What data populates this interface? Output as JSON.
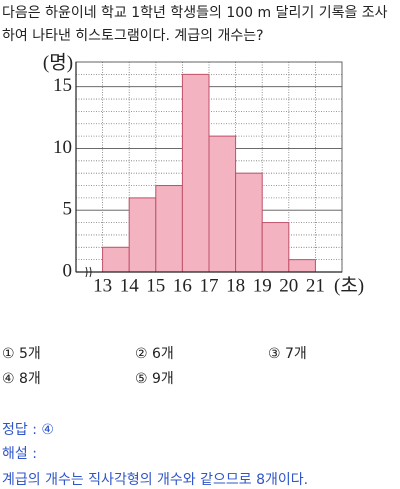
{
  "question": {
    "lines": [
      "다음은 하윤이네 학교 1학년 학생들의 100 m 달리기 기록을 조사",
      "하여 나타낸 히스토그램이다. 계급의 개수는?"
    ]
  },
  "chart_data": {
    "type": "histogram",
    "bins": [
      13,
      14,
      15,
      16,
      17,
      18,
      19,
      20,
      21
    ],
    "values": [
      2,
      6,
      7,
      16,
      11,
      8,
      4,
      1
    ],
    "color": "#f4b3c0",
    "edge_color": "#c0506a",
    "y_label": "(명)",
    "x_label": "(초)",
    "ylim": [
      0,
      17
    ],
    "yticks": [
      0,
      5,
      10,
      15
    ],
    "y_minor_ticks": [
      1,
      2,
      3,
      4,
      6,
      7,
      8,
      9,
      11,
      12,
      13,
      14,
      16,
      17
    ],
    "xlim": [
      12,
      22
    ],
    "xticks": [
      13,
      14,
      15,
      16,
      17,
      18,
      19,
      20,
      21
    ],
    "grid": true
  },
  "choices": [
    "① 5개",
    "② 6개",
    "③ 7개",
    "④ 8개",
    "⑤ 9개"
  ],
  "answer": {
    "line": "정답 : ④",
    "explanation_label": "해설 :",
    "explanation": "계급의 개수는 직사각형의 개수와 같으므로 8개이다."
  }
}
